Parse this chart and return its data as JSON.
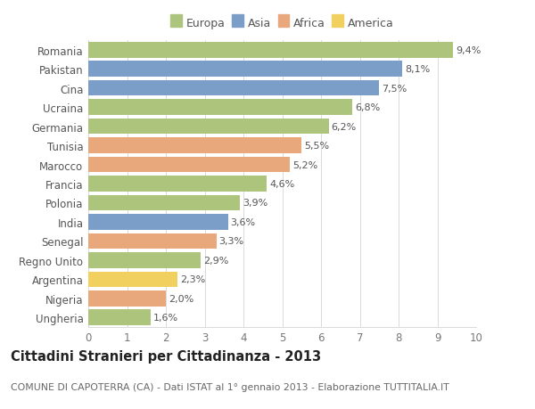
{
  "countries": [
    "Romania",
    "Pakistan",
    "Cina",
    "Ucraina",
    "Germania",
    "Tunisia",
    "Marocco",
    "Francia",
    "Polonia",
    "India",
    "Senegal",
    "Regno Unito",
    "Argentina",
    "Nigeria",
    "Ungheria"
  ],
  "values": [
    9.4,
    8.1,
    7.5,
    6.8,
    6.2,
    5.5,
    5.2,
    4.6,
    3.9,
    3.6,
    3.3,
    2.9,
    2.3,
    2.0,
    1.6
  ],
  "labels": [
    "9,4%",
    "8,1%",
    "7,5%",
    "6,8%",
    "6,2%",
    "5,5%",
    "5,2%",
    "4,6%",
    "3,9%",
    "3,6%",
    "3,3%",
    "2,9%",
    "2,3%",
    "2,0%",
    "1,6%"
  ],
  "continents": [
    "Europa",
    "Asia",
    "Asia",
    "Europa",
    "Europa",
    "Africa",
    "Africa",
    "Europa",
    "Europa",
    "Asia",
    "Africa",
    "Europa",
    "America",
    "Africa",
    "Europa"
  ],
  "continent_colors": {
    "Europa": "#adc47d",
    "Asia": "#7b9ec9",
    "Africa": "#e8a87c",
    "America": "#f2d060"
  },
  "legend_order": [
    "Europa",
    "Asia",
    "Africa",
    "America"
  ],
  "xlim": [
    0,
    10
  ],
  "xticks": [
    0,
    1,
    2,
    3,
    4,
    5,
    6,
    7,
    8,
    9,
    10
  ],
  "title": "Cittadini Stranieri per Cittadinanza - 2013",
  "subtitle": "COMUNE DI CAPOTERRA (CA) - Dati ISTAT al 1° gennaio 2013 - Elaborazione TUTTITALIA.IT",
  "background_color": "#ffffff",
  "bar_height": 0.82,
  "grid_color": "#d5d5d5",
  "label_fontsize": 8,
  "ytick_fontsize": 8.5,
  "xtick_fontsize": 8.5,
  "title_fontsize": 10.5,
  "subtitle_fontsize": 7.8,
  "legend_fontsize": 9,
  "legend_marker_size": 12
}
